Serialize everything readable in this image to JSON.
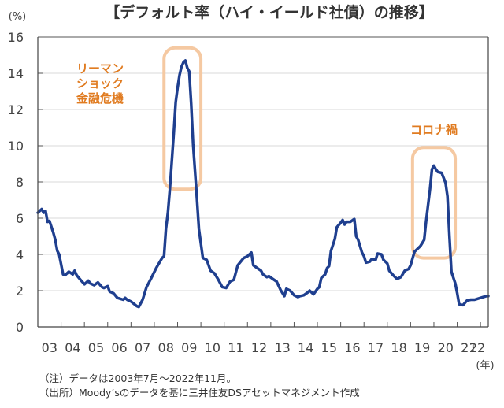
{
  "chart_data": {
    "type": "line",
    "title": "【デフォルト率（ハイ・イールド社債）の推移】",
    "ylabel": "(%)",
    "xlabel": "(年)",
    "ylim": [
      0,
      16
    ],
    "yticks": [
      0,
      2,
      4,
      6,
      8,
      10,
      12,
      14,
      16
    ],
    "grid": true,
    "x_start": "2003-07",
    "x_end": "2022-11",
    "x_tick_labels": [
      "03",
      "04",
      "05",
      "06",
      "07",
      "08",
      "09",
      "10",
      "11",
      "12",
      "13",
      "14",
      "15",
      "16",
      "17",
      "18",
      "19",
      "20",
      "21",
      "22"
    ],
    "series": [
      {
        "name": "デフォルト率",
        "color": "#1F3F8F",
        "points": [
          [
            "2003-07",
            6.3
          ],
          [
            "2003-09",
            6.5
          ],
          [
            "2003-10",
            6.3
          ],
          [
            "2003-11",
            6.4
          ],
          [
            "2003-12",
            5.8
          ],
          [
            "2004-01",
            5.85
          ],
          [
            "2004-03",
            5.2
          ],
          [
            "2004-04",
            4.8
          ],
          [
            "2004-05",
            4.2
          ],
          [
            "2004-06",
            4.0
          ],
          [
            "2004-08",
            2.9
          ],
          [
            "2004-09",
            2.85
          ],
          [
            "2004-11",
            3.05
          ],
          [
            "2005-01",
            2.9
          ],
          [
            "2005-02",
            3.1
          ],
          [
            "2005-03",
            2.85
          ],
          [
            "2005-05",
            2.6
          ],
          [
            "2005-07",
            2.35
          ],
          [
            "2005-09",
            2.55
          ],
          [
            "2005-10",
            2.4
          ],
          [
            "2005-12",
            2.3
          ],
          [
            "2006-02",
            2.45
          ],
          [
            "2006-04",
            2.2
          ],
          [
            "2006-05",
            2.15
          ],
          [
            "2006-07",
            2.25
          ],
          [
            "2006-08",
            1.95
          ],
          [
            "2006-10",
            1.85
          ],
          [
            "2006-12",
            1.6
          ],
          [
            "2007-03",
            1.5
          ],
          [
            "2007-04",
            1.6
          ],
          [
            "2007-05",
            1.5
          ],
          [
            "2007-07",
            1.4
          ],
          [
            "2007-10",
            1.15
          ],
          [
            "2007-11",
            1.1
          ],
          [
            "2008-01",
            1.5
          ],
          [
            "2008-03",
            2.2
          ],
          [
            "2008-05",
            2.6
          ],
          [
            "2008-08",
            3.25
          ],
          [
            "2008-11",
            3.8
          ],
          [
            "2008-12",
            3.9
          ],
          [
            "2009-01",
            5.4
          ],
          [
            "2009-02",
            6.3
          ],
          [
            "2009-03",
            7.6
          ],
          [
            "2009-05",
            10.65
          ],
          [
            "2009-06",
            12.4
          ],
          [
            "2009-07",
            13.2
          ],
          [
            "2009-08",
            13.9
          ],
          [
            "2009-09",
            14.35
          ],
          [
            "2009-10",
            14.6
          ],
          [
            "2009-11",
            14.7
          ],
          [
            "2009-12",
            14.3
          ],
          [
            "2010-01",
            14.1
          ],
          [
            "2010-02",
            12.3
          ],
          [
            "2010-03",
            10.1
          ],
          [
            "2010-05",
            7.0
          ],
          [
            "2010-06",
            5.4
          ],
          [
            "2010-08",
            3.8
          ],
          [
            "2010-10",
            3.7
          ],
          [
            "2010-12",
            3.1
          ],
          [
            "2011-02",
            2.95
          ],
          [
            "2011-04",
            2.6
          ],
          [
            "2011-06",
            2.2
          ],
          [
            "2011-08",
            2.15
          ],
          [
            "2011-10",
            2.5
          ],
          [
            "2011-12",
            2.6
          ],
          [
            "2012-02",
            3.4
          ],
          [
            "2012-05",
            3.8
          ],
          [
            "2012-07",
            3.9
          ],
          [
            "2012-09",
            4.1
          ],
          [
            "2012-10",
            3.4
          ],
          [
            "2012-12",
            3.25
          ],
          [
            "2013-02",
            3.1
          ],
          [
            "2013-03",
            2.9
          ],
          [
            "2013-05",
            2.75
          ],
          [
            "2013-06",
            2.8
          ],
          [
            "2013-08",
            2.65
          ],
          [
            "2013-10",
            2.5
          ],
          [
            "2013-12",
            2.05
          ],
          [
            "2014-02",
            1.7
          ],
          [
            "2014-03",
            2.1
          ],
          [
            "2014-05",
            2.0
          ],
          [
            "2014-07",
            1.75
          ],
          [
            "2014-09",
            1.65
          ],
          [
            "2014-10",
            1.7
          ],
          [
            "2014-12",
            1.75
          ],
          [
            "2015-02",
            1.9
          ],
          [
            "2015-03",
            2.0
          ],
          [
            "2015-05",
            1.8
          ],
          [
            "2015-07",
            2.1
          ],
          [
            "2015-08",
            2.2
          ],
          [
            "2015-09",
            2.7
          ],
          [
            "2015-11",
            2.9
          ],
          [
            "2015-12",
            3.25
          ],
          [
            "2016-01",
            3.35
          ],
          [
            "2016-02",
            4.2
          ],
          [
            "2016-04",
            4.85
          ],
          [
            "2016-05",
            5.5
          ],
          [
            "2016-07",
            5.75
          ],
          [
            "2016-08",
            5.9
          ],
          [
            "2016-09",
            5.65
          ],
          [
            "2016-10",
            5.8
          ],
          [
            "2016-12",
            5.8
          ],
          [
            "2017-02",
            5.95
          ],
          [
            "2017-03",
            5.0
          ],
          [
            "2017-04",
            4.8
          ],
          [
            "2017-06",
            4.1
          ],
          [
            "2017-07",
            3.9
          ],
          [
            "2017-08",
            3.55
          ],
          [
            "2017-10",
            3.6
          ],
          [
            "2017-11",
            3.75
          ],
          [
            "2018-01",
            3.7
          ],
          [
            "2018-02",
            4.05
          ],
          [
            "2018-04",
            4.0
          ],
          [
            "2018-05",
            3.7
          ],
          [
            "2018-07",
            3.5
          ],
          [
            "2018-08",
            3.1
          ],
          [
            "2018-10",
            2.85
          ],
          [
            "2018-12",
            2.65
          ],
          [
            "2019-02",
            2.75
          ],
          [
            "2019-04",
            3.1
          ],
          [
            "2019-06",
            3.2
          ],
          [
            "2019-07",
            3.4
          ],
          [
            "2019-09",
            4.15
          ],
          [
            "2019-11",
            4.35
          ],
          [
            "2019-12",
            4.45
          ],
          [
            "2020-02",
            4.8
          ],
          [
            "2020-03",
            5.85
          ],
          [
            "2020-05",
            7.6
          ],
          [
            "2020-06",
            8.7
          ],
          [
            "2020-07",
            8.9
          ],
          [
            "2020-08",
            8.7
          ],
          [
            "2020-09",
            8.55
          ],
          [
            "2020-11",
            8.5
          ],
          [
            "2021-01",
            7.95
          ],
          [
            "2021-02",
            7.2
          ],
          [
            "2021-03",
            5.0
          ],
          [
            "2021-04",
            3.05
          ],
          [
            "2021-06",
            2.4
          ],
          [
            "2021-07",
            1.85
          ],
          [
            "2021-08",
            1.25
          ],
          [
            "2021-10",
            1.2
          ],
          [
            "2021-12",
            1.45
          ],
          [
            "2022-02",
            1.5
          ],
          [
            "2022-04",
            1.5
          ],
          [
            "2022-07",
            1.6
          ],
          [
            "2022-10",
            1.7
          ],
          [
            "2022-11",
            1.7
          ]
        ]
      }
    ],
    "annotations": [
      {
        "name": "lehman",
        "lines": [
          "リーマン",
          "ショック",
          "金融危機"
        ],
        "highlight_range": [
          "2008-12",
          "2010-07"
        ],
        "highlight_y": [
          7.6,
          15.4
        ],
        "color": "#E07B20",
        "box_color": "#F5C9A2"
      },
      {
        "name": "covid",
        "lines": [
          "コロナ禍"
        ],
        "highlight_range": [
          "2019-08",
          "2021-06"
        ],
        "highlight_y": [
          3.8,
          9.9
        ],
        "color": "#E07B20",
        "box_color": "#F5C9A2"
      }
    ]
  },
  "notes": {
    "note": "（注）データは2003年7月～2022年11月。",
    "source": "（出所）Moody’sのデータを基に三井住友DSアセットマネジメント作成"
  }
}
